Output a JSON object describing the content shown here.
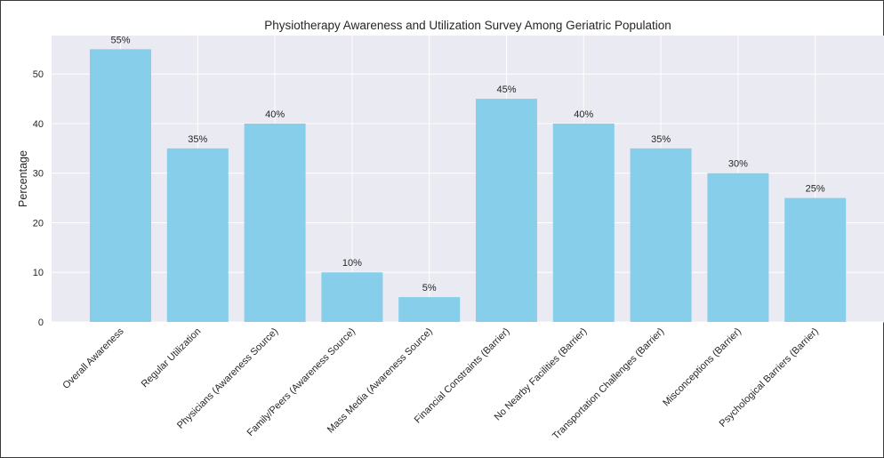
{
  "chart_data": {
    "type": "bar",
    "title": "Physiotherapy Awareness and Utilization Survey Among Geriatric Population",
    "xlabel": "",
    "ylabel": "Percentage",
    "categories": [
      "Overall Awareness",
      "Regular Utilization",
      "Physicians (Awareness Source)",
      "Family/Peers (Awareness Source)",
      "Mass Media (Awareness Source)",
      "Financial Constraints (Barrier)",
      "No Nearby Facilities (Barrier)",
      "Transportation Challenges (Barrier)",
      "Misconceptions (Barrier)",
      "Psychological Barriers (Barrier)"
    ],
    "values": [
      55,
      35,
      40,
      10,
      5,
      45,
      40,
      35,
      30,
      25
    ],
    "value_labels": [
      "55%",
      "35%",
      "40%",
      "10%",
      "5%",
      "45%",
      "40%",
      "35%",
      "30%",
      "25%"
    ],
    "yticks": [
      0,
      10,
      20,
      30,
      40,
      50
    ],
    "ylim": [
      0,
      57.75
    ],
    "grid": true,
    "colors": {
      "bar": "#87ceeb",
      "background": "#eaeaf2",
      "grid": "#ffffff",
      "text": "#262626"
    }
  }
}
